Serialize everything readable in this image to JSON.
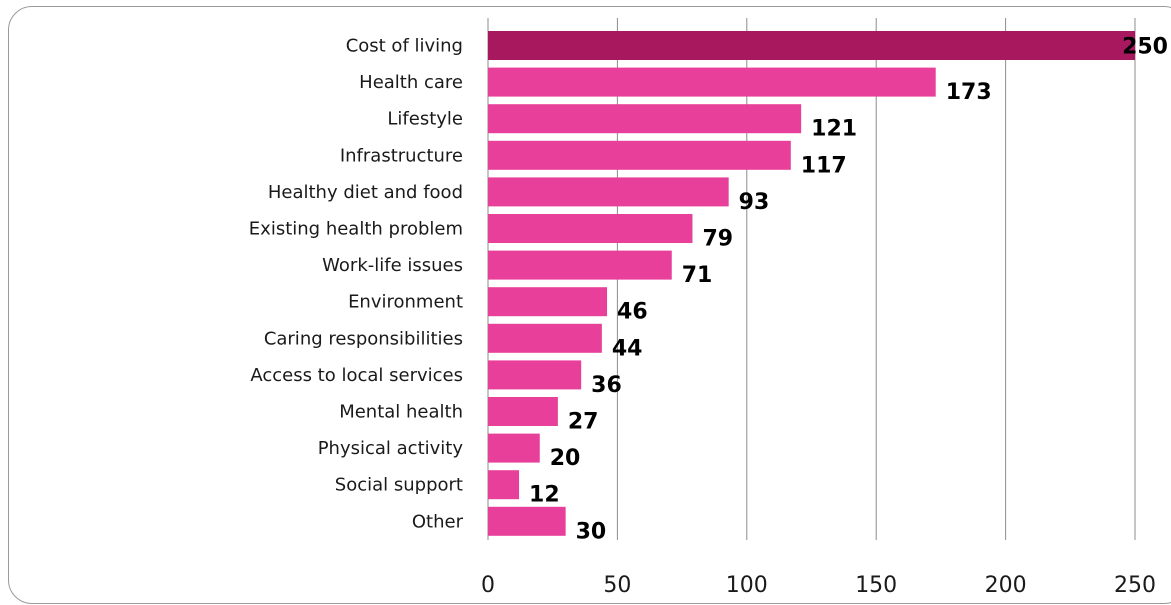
{
  "chart_data": {
    "type": "bar",
    "orientation": "horizontal",
    "categories": [
      "Cost of living",
      "Health care",
      "Lifestyle",
      "Infrastructure",
      "Healthy diet and food",
      "Existing health problem",
      "Work-life issues",
      "Environment",
      "Caring responsibilities",
      "Access to local services",
      "Mental health",
      "Physical activity",
      "Social support",
      "Other"
    ],
    "values": [
      250,
      173,
      121,
      117,
      93,
      79,
      71,
      46,
      44,
      36,
      27,
      20,
      12,
      30
    ],
    "xlim": [
      0,
      250
    ],
    "xticks": [
      "0",
      "50",
      "100",
      "150",
      "200",
      "250"
    ],
    "grid": true,
    "colors": {
      "highlight": "#a8185f",
      "bar": "#e8409a",
      "grid": "#8c8c8c"
    },
    "title": "",
    "xlabel": "",
    "ylabel": ""
  }
}
